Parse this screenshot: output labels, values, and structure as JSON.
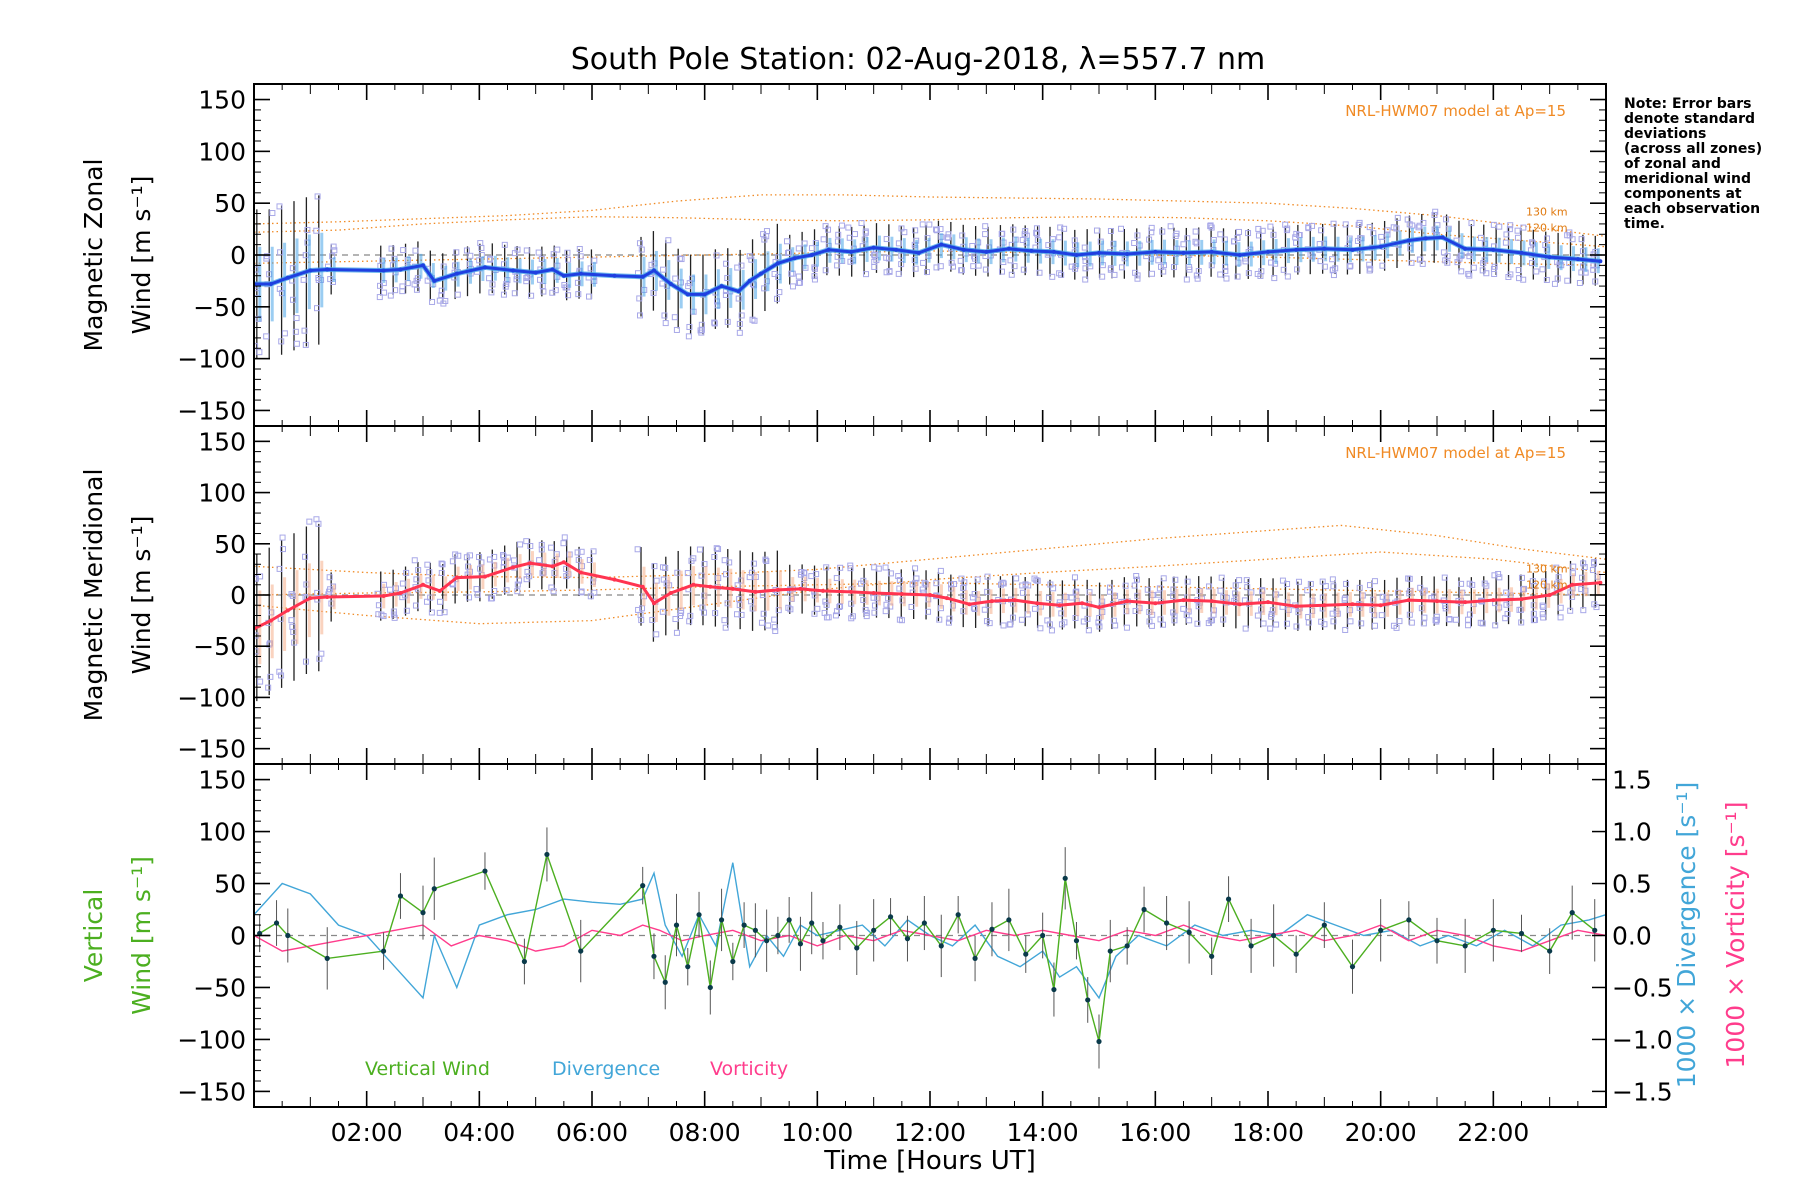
{
  "chart_data": {
    "type": "line",
    "title": "South Pole Station: 02-Aug-2018, λ=557.7 nm",
    "xlabel": "Time [Hours UT]",
    "xlim": [
      0,
      24
    ],
    "xticks": [
      2,
      4,
      6,
      8,
      10,
      12,
      14,
      16,
      18,
      20,
      22
    ],
    "xtick_labels": [
      "02:00",
      "04:00",
      "06:00",
      "08:00",
      "10:00",
      "12:00",
      "14:00",
      "16:00",
      "18:00",
      "20:00",
      "22:00"
    ],
    "note": [
      "Note: Error bars",
      "denote standard",
      "deviations",
      "(across all zones)",
      "of zonal and",
      "meridional wind",
      "components at",
      "each observation",
      "time."
    ],
    "colors": {
      "zonal": "#1f3fe0",
      "zonal_light": "#4aa6e8",
      "meridional": "#ff3450",
      "scatter": "#a8a8e8",
      "model": "#f08a24",
      "vertical": "#4caf20",
      "divergence": "#42a6d8",
      "vorticity": "#ff3c8c",
      "errbar": "#222222"
    },
    "panels": [
      {
        "id": "zonal",
        "ylabel_line1": "Magnetic Zonal",
        "ylabel_line2": "Wind [m s⁻¹]",
        "ylim": [
          -165,
          165
        ],
        "yticks": [
          -150,
          -100,
          -50,
          0,
          50,
          100,
          150
        ],
        "ytick_labels": [
          "−150",
          "−100",
          "−50",
          "0",
          "50",
          "100",
          "150"
        ],
        "model_label": "NRL-HWM07 model at Ap=15",
        "alt_labels": [
          "130 km",
          "120 km"
        ],
        "mean_series": {
          "name": "Zonal mean wind",
          "x": [
            0.0,
            0.3,
            0.6,
            1.0,
            1.3,
            2.3,
            2.6,
            3.0,
            3.2,
            3.6,
            4.1,
            4.6,
            5.0,
            5.3,
            5.5,
            5.8,
            6.4,
            6.9,
            7.1,
            7.4,
            7.7,
            8.0,
            8.3,
            8.6,
            8.8,
            9.0,
            9.3,
            9.6,
            9.9,
            10.2,
            10.6,
            11.0,
            11.4,
            11.8,
            12.2,
            12.6,
            13.0,
            13.4,
            13.8,
            14.2,
            14.6,
            15.0,
            15.5,
            16.0,
            16.5,
            17.0,
            17.5,
            18.0,
            18.5,
            19.0,
            19.5,
            20.0,
            20.5,
            20.8,
            21.1,
            21.5,
            22.0,
            22.5,
            23.0,
            23.5,
            23.9
          ],
          "y": [
            -28,
            -28,
            -22,
            -15,
            -14,
            -15,
            -14,
            -10,
            -25,
            -18,
            -12,
            -15,
            -17,
            -14,
            -20,
            -18,
            -20,
            -21,
            -15,
            -28,
            -38,
            -38,
            -30,
            -35,
            -25,
            -18,
            -8,
            -3,
            0,
            5,
            3,
            7,
            5,
            2,
            10,
            5,
            3,
            6,
            4,
            3,
            0,
            2,
            1,
            3,
            2,
            3,
            0,
            3,
            5,
            6,
            5,
            8,
            14,
            16,
            17,
            6,
            5,
            2,
            -2,
            -4,
            -6
          ]
        },
        "model_curves": [
          {
            "name": "HWM07 130 km",
            "x": [
              0,
              1.5,
              3,
              4.5,
              6,
              7.5,
              9,
              10.5,
              12,
              13.5,
              15,
              16.5,
              18,
              19.5,
              21,
              22.5,
              24
            ],
            "y": [
              30,
              32,
              35,
              38,
              43,
              52,
              58,
              58,
              56,
              55,
              54,
              52,
              50,
              45,
              38,
              28,
              18
            ]
          },
          {
            "name": "HWM07 120 km",
            "x": [
              0,
              1.5,
              3,
              4.5,
              6,
              7.5,
              9,
              10.5,
              12,
              13.5,
              15,
              16.5,
              18,
              19.5,
              21,
              22.5,
              24
            ],
            "y": [
              22,
              24,
              30,
              34,
              37,
              36,
              34,
              33,
              34,
              36,
              37,
              36,
              33,
              28,
              20,
              14,
              8
            ]
          },
          {
            "name": "HWM07 lower",
            "x": [
              0,
              2,
              4,
              6,
              8,
              10,
              12,
              14,
              16,
              18,
              20,
              22,
              24
            ],
            "y": [
              -8,
              -6,
              -4,
              -2,
              0,
              2,
              4,
              2,
              0,
              -2,
              -5,
              -8,
              -10
            ]
          }
        ]
      },
      {
        "id": "meridional",
        "ylabel_line1": "Magnetic Meridional",
        "ylabel_line2": "Wind [m s⁻¹]",
        "ylim": [
          -165,
          165
        ],
        "yticks": [
          -150,
          -100,
          -50,
          0,
          50,
          100,
          150
        ],
        "ytick_labels": [
          "−150",
          "−100",
          "−50",
          "0",
          "50",
          "100",
          "150"
        ],
        "model_label": "NRL-HWM07 model at Ap=15",
        "alt_labels": [
          "130 km",
          "120 km"
        ],
        "mean_series": {
          "name": "Meridional mean wind",
          "x": [
            0.0,
            0.3,
            0.6,
            1.0,
            1.3,
            2.3,
            2.6,
            3.0,
            3.3,
            3.6,
            4.1,
            4.6,
            4.9,
            5.3,
            5.5,
            5.8,
            6.4,
            6.9,
            7.1,
            7.4,
            7.8,
            8.1,
            8.5,
            8.9,
            9.3,
            9.7,
            10.1,
            10.6,
            11.0,
            11.5,
            12.0,
            12.3,
            12.7,
            13.1,
            13.5,
            13.9,
            14.3,
            14.7,
            15.0,
            15.5,
            16.0,
            16.5,
            17.0,
            17.5,
            18.0,
            18.5,
            19.0,
            19.5,
            20.0,
            20.5,
            21.0,
            21.5,
            22.0,
            22.5,
            23.0,
            23.4,
            23.9
          ],
          "y": [
            -33,
            -25,
            -15,
            -3,
            -2,
            -1,
            2,
            10,
            4,
            17,
            18,
            27,
            31,
            28,
            32,
            22,
            15,
            8,
            -8,
            2,
            10,
            8,
            6,
            3,
            5,
            6,
            4,
            3,
            2,
            1,
            0,
            -3,
            -9,
            -6,
            -5,
            -8,
            -10,
            -8,
            -12,
            -6,
            -8,
            -5,
            -6,
            -9,
            -7,
            -11,
            -10,
            -9,
            -10,
            -5,
            -6,
            -7,
            -5,
            -4,
            0,
            10,
            12
          ]
        },
        "model_curves": [
          {
            "name": "HWM07 130 km",
            "x": [
              0,
              2,
              4,
              6,
              8,
              10,
              12,
              14,
              16,
              18,
              19.3,
              21,
              22.5,
              24
            ],
            "y": [
              28,
              22,
              18,
              17,
              20,
              25,
              35,
              45,
              55,
              63,
              68,
              58,
              45,
              35
            ]
          },
          {
            "name": "HWM07 120 km",
            "x": [
              0,
              2,
              4,
              6,
              8,
              10,
              12,
              14,
              16,
              18,
              20,
              22,
              24
            ],
            "y": [
              -10,
              -20,
              -28,
              -25,
              -10,
              5,
              15,
              22,
              28,
              35,
              42,
              35,
              22
            ]
          },
          {
            "name": "HWM07 lower",
            "x": [
              0,
              2,
              4,
              6,
              8,
              10,
              12,
              14,
              16,
              18,
              20,
              22,
              24
            ],
            "y": [
              0,
              2,
              3,
              5,
              8,
              10,
              12,
              10,
              8,
              6,
              4,
              2,
              0
            ]
          }
        ]
      },
      {
        "id": "vertical",
        "ylabel_line1": "Vertical",
        "ylabel_line2": "Wind [m s⁻¹]",
        "ylim": [
          -165,
          165
        ],
        "yticks": [
          -150,
          -100,
          -50,
          0,
          50,
          100,
          150
        ],
        "ytick_labels": [
          "−150",
          "−100",
          "−50",
          "0",
          "50",
          "100",
          "150"
        ],
        "y2_label_div": "1000 × Divergence [s⁻¹]",
        "y2_label_vort": "1000 × Vorticity [s⁻¹]",
        "y2lim": [
          -1.65,
          1.65
        ],
        "y2ticks": [
          -1.5,
          -1.0,
          -0.5,
          0.0,
          0.5,
          1.0,
          1.5
        ],
        "y2tick_labels": [
          "−1.5",
          "−1.0",
          "−0.5",
          "0.0",
          "0.5",
          "1.0",
          "1.5"
        ],
        "legend": [
          "Vertical Wind",
          "Divergence",
          "Vorticity"
        ],
        "vertical_wind": {
          "x": [
            0.1,
            0.4,
            0.6,
            1.3,
            2.3,
            2.6,
            3.0,
            3.2,
            4.1,
            4.8,
            5.2,
            5.8,
            6.9,
            7.1,
            7.3,
            7.5,
            7.7,
            7.9,
            8.1,
            8.3,
            8.5,
            8.7,
            8.9,
            9.1,
            9.3,
            9.5,
            9.7,
            9.9,
            10.1,
            10.4,
            10.7,
            11.0,
            11.3,
            11.6,
            11.9,
            12.2,
            12.5,
            12.8,
            13.1,
            13.4,
            13.7,
            14.0,
            14.2,
            14.4,
            14.6,
            14.8,
            15.0,
            15.2,
            15.5,
            15.8,
            16.2,
            16.6,
            17.0,
            17.3,
            17.7,
            18.1,
            18.5,
            19.0,
            19.5,
            20.0,
            20.5,
            21.0,
            21.5,
            22.0,
            22.5,
            23.0,
            23.4,
            23.8
          ],
          "y": [
            2,
            12,
            0,
            -22,
            -15,
            38,
            22,
            45,
            62,
            -25,
            78,
            -15,
            48,
            -20,
            -45,
            10,
            -30,
            20,
            -50,
            15,
            -25,
            10,
            5,
            -5,
            0,
            15,
            -8,
            12,
            -5,
            8,
            -12,
            5,
            18,
            -3,
            12,
            -10,
            20,
            -22,
            6,
            15,
            -18,
            0,
            -52,
            55,
            -5,
            -62,
            -102,
            -15,
            -10,
            25,
            12,
            3,
            -20,
            35,
            -10,
            0,
            -18,
            10,
            -30,
            5,
            15,
            -5,
            -10,
            5,
            2,
            -15,
            22,
            5
          ]
        },
        "divergence": {
          "x": [
            0,
            0.5,
            1.0,
            1.5,
            2.0,
            2.5,
            3.0,
            3.2,
            3.6,
            4.0,
            4.5,
            5.0,
            5.5,
            6.0,
            6.5,
            6.9,
            7.1,
            7.3,
            7.6,
            7.9,
            8.2,
            8.5,
            8.8,
            9.1,
            9.4,
            9.7,
            10.0,
            10.4,
            10.8,
            11.2,
            11.6,
            12.0,
            12.4,
            12.8,
            13.2,
            13.6,
            14.0,
            14.3,
            14.6,
            15.0,
            15.3,
            15.7,
            16.2,
            16.7,
            17.2,
            17.7,
            18.2,
            18.7,
            19.2,
            19.7,
            20.2,
            20.7,
            21.2,
            21.7,
            22.2,
            22.7,
            23.2,
            23.7,
            24.0
          ],
          "y": [
            0.2,
            0.5,
            0.4,
            0.1,
            0.0,
            -0.3,
            -0.6,
            0.0,
            -0.5,
            0.1,
            0.2,
            0.25,
            0.35,
            0.32,
            0.3,
            0.35,
            0.6,
            0.1,
            -0.2,
            0.2,
            -0.1,
            0.7,
            -0.3,
            0.0,
            -0.2,
            0.1,
            0.0,
            0.05,
            0.1,
            -0.1,
            0.15,
            0.0,
            -0.1,
            0.1,
            -0.2,
            -0.3,
            -0.15,
            -0.4,
            -0.3,
            -0.6,
            -0.2,
            0.0,
            -0.1,
            0.1,
            0.0,
            0.05,
            0.0,
            0.2,
            0.1,
            0.0,
            0.05,
            -0.1,
            0.0,
            -0.1,
            0.05,
            -0.1,
            0.1,
            0.15,
            0.2
          ]
        },
        "vorticity": {
          "x": [
            0,
            0.5,
            1.0,
            1.5,
            2.0,
            2.5,
            3.0,
            3.5,
            4.0,
            4.5,
            5.0,
            5.5,
            6.0,
            6.5,
            6.9,
            7.2,
            7.6,
            8.0,
            8.5,
            9.0,
            9.5,
            10.0,
            10.5,
            11.0,
            11.5,
            12.0,
            12.5,
            13.0,
            13.5,
            14.0,
            14.5,
            15.0,
            15.5,
            16.0,
            16.5,
            17.0,
            17.5,
            18.0,
            18.5,
            19.0,
            19.5,
            20.0,
            20.5,
            21.0,
            21.5,
            22.0,
            22.5,
            23.0,
            23.5,
            24.0
          ],
          "y": [
            0.0,
            -0.15,
            -0.1,
            -0.05,
            0.0,
            0.05,
            0.1,
            -0.1,
            0.0,
            -0.05,
            -0.15,
            -0.1,
            0.05,
            0.0,
            0.1,
            0.05,
            -0.05,
            0.0,
            0.05,
            -0.05,
            0.0,
            -0.1,
            0.0,
            -0.05,
            0.05,
            0.0,
            -0.05,
            0.05,
            0.0,
            0.05,
            0.0,
            -0.05,
            0.05,
            0.0,
            0.1,
            0.0,
            -0.05,
            0.0,
            0.05,
            -0.05,
            0.0,
            0.1,
            -0.05,
            0.05,
            0.0,
            -0.1,
            -0.15,
            -0.05,
            0.05,
            0.0
          ]
        }
      }
    ]
  }
}
